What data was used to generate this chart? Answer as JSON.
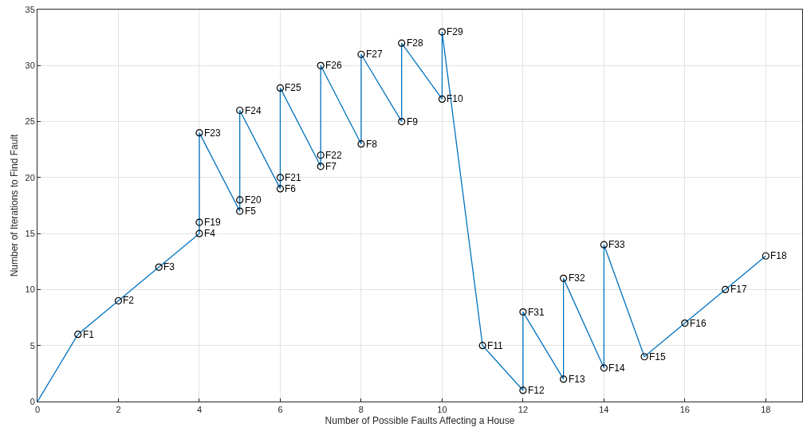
{
  "chart_data": {
    "type": "line",
    "xlabel": "Number of Possible Faults Affecting a House",
    "ylabel": "Number of Iterations to Find Fault",
    "xlim": [
      0,
      18.9
    ],
    "xticks": [
      0,
      2,
      4,
      6,
      8,
      10,
      12,
      14,
      16,
      18
    ],
    "ylim": [
      0,
      35
    ],
    "yticks": [
      0,
      5,
      10,
      15,
      20,
      25,
      30,
      35
    ],
    "grid": true,
    "series": [
      {
        "color": "#0072bd",
        "marker": "none",
        "x": [
          0,
          1,
          2,
          3,
          4,
          4,
          4,
          5,
          5,
          5,
          6,
          6,
          6,
          7,
          7,
          7,
          8,
          8,
          9,
          9,
          10,
          10,
          11,
          12,
          12,
          13,
          13,
          14,
          14,
          15,
          16,
          17,
          18
        ],
        "values": [
          0,
          6,
          9,
          12,
          15,
          16,
          24,
          17,
          18,
          26,
          19,
          20,
          28,
          21,
          22,
          30,
          23,
          31,
          25,
          32,
          27,
          33,
          5,
          1,
          8,
          2,
          11,
          3,
          14,
          4,
          7,
          10,
          13
        ]
      },
      {
        "type": "scatter",
        "color": "#000000",
        "marker": "circle",
        "x": [
          1,
          2,
          3,
          4,
          4,
          4,
          5,
          5,
          5,
          6,
          6,
          6,
          7,
          7,
          7,
          8,
          8,
          9,
          9,
          10,
          10,
          11,
          12,
          12,
          13,
          13,
          14,
          14,
          15,
          16,
          17,
          18
        ],
        "values": [
          6,
          9,
          12,
          15,
          16,
          24,
          17,
          18,
          26,
          19,
          20,
          28,
          21,
          22,
          30,
          23,
          31,
          25,
          32,
          27,
          33,
          5,
          1,
          8,
          2,
          11,
          3,
          14,
          4,
          7,
          10,
          13
        ]
      }
    ],
    "annotations": [
      {
        "text": "F1",
        "x": 1,
        "y": 6
      },
      {
        "text": "F2",
        "x": 2,
        "y": 9
      },
      {
        "text": "F3",
        "x": 3,
        "y": 12
      },
      {
        "text": "F4",
        "x": 4,
        "y": 15
      },
      {
        "text": "F19",
        "x": 4,
        "y": 16
      },
      {
        "text": "F23",
        "x": 4,
        "y": 24
      },
      {
        "text": "F5",
        "x": 5,
        "y": 17
      },
      {
        "text": "F20",
        "x": 5,
        "y": 18
      },
      {
        "text": "F24",
        "x": 5,
        "y": 26
      },
      {
        "text": "F6",
        "x": 6,
        "y": 19
      },
      {
        "text": "F21",
        "x": 6,
        "y": 20
      },
      {
        "text": "F25",
        "x": 6,
        "y": 28
      },
      {
        "text": "F7",
        "x": 7,
        "y": 21
      },
      {
        "text": "F22",
        "x": 7,
        "y": 22
      },
      {
        "text": "F26",
        "x": 7,
        "y": 30
      },
      {
        "text": "F8",
        "x": 8,
        "y": 23
      },
      {
        "text": "F27",
        "x": 8,
        "y": 31
      },
      {
        "text": "F9",
        "x": 9,
        "y": 25
      },
      {
        "text": "F28",
        "x": 9,
        "y": 32
      },
      {
        "text": "F10",
        "x": 10,
        "y": 27
      },
      {
        "text": "F29",
        "x": 10,
        "y": 33
      },
      {
        "text": "F11",
        "x": 11,
        "y": 5
      },
      {
        "text": "F12",
        "x": 12,
        "y": 1
      },
      {
        "text": "F31",
        "x": 12,
        "y": 8
      },
      {
        "text": "F13",
        "x": 13,
        "y": 2
      },
      {
        "text": "F32",
        "x": 13,
        "y": 11
      },
      {
        "text": "F14",
        "x": 14,
        "y": 3
      },
      {
        "text": "F33",
        "x": 14,
        "y": 14
      },
      {
        "text": "F15",
        "x": 15,
        "y": 4
      },
      {
        "text": "F16",
        "x": 16,
        "y": 7
      },
      {
        "text": "F17",
        "x": 17,
        "y": 10
      },
      {
        "text": "F18",
        "x": 18,
        "y": 13
      }
    ]
  }
}
